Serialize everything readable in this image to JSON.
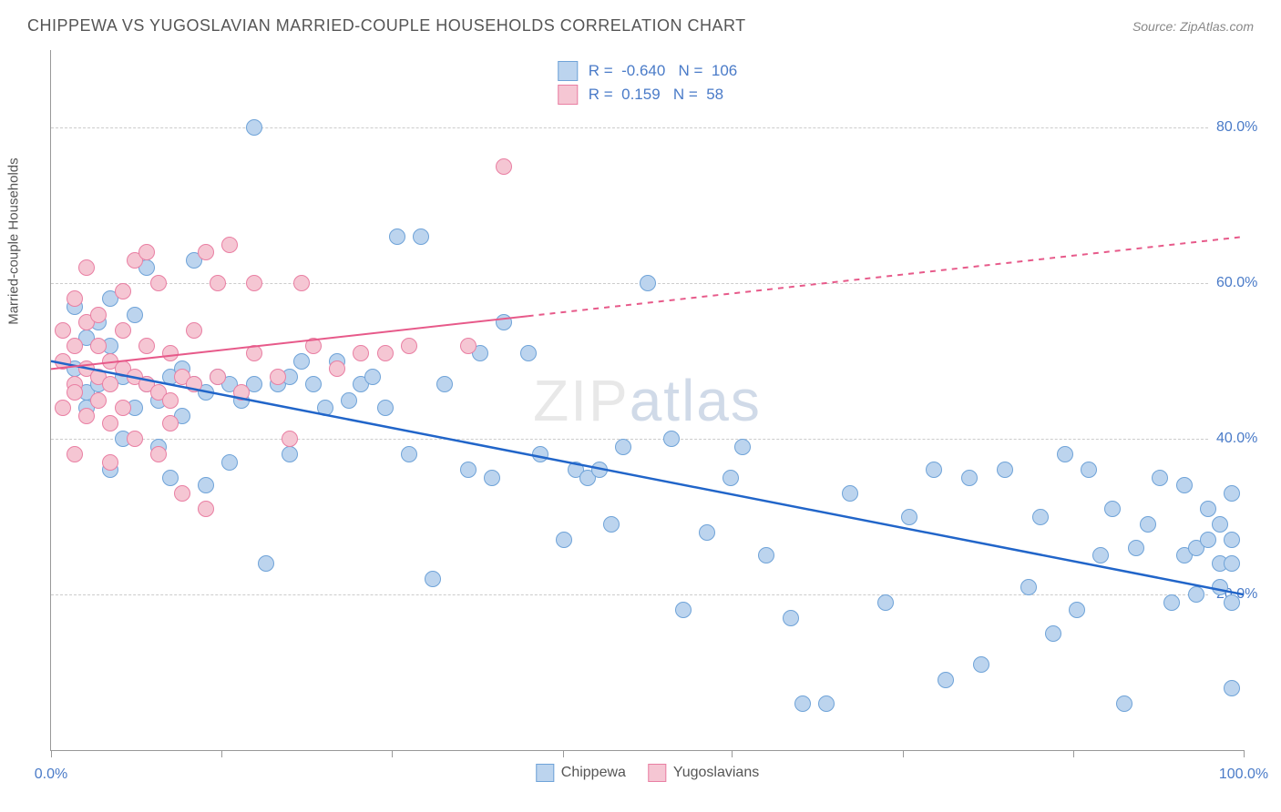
{
  "title": "CHIPPEWA VS YUGOSLAVIAN MARRIED-COUPLE HOUSEHOLDS CORRELATION CHART",
  "source": "Source: ZipAtlas.com",
  "y_axis_label": "Married-couple Households",
  "watermark_a": "ZIP",
  "watermark_b": "atlas",
  "chart": {
    "type": "scatter",
    "xlim": [
      0,
      100
    ],
    "ylim": [
      0,
      90
    ],
    "ytick_values": [
      20,
      40,
      60,
      80
    ],
    "ytick_labels": [
      "20.0%",
      "40.0%",
      "60.0%",
      "80.0%"
    ],
    "xtick_values": [
      0,
      14.3,
      28.6,
      42.9,
      57.1,
      71.4,
      85.7,
      100
    ],
    "xtick_labels_left": "0.0%",
    "xtick_labels_right": "100.0%",
    "background_color": "#ffffff",
    "grid_color": "#cccccc",
    "axis_color": "#999999"
  },
  "series": [
    {
      "name": "Chippewa",
      "R": "-0.640",
      "N": "106",
      "marker_fill": "#bcd4ee",
      "marker_stroke": "#6fa3d8",
      "marker_size": 18,
      "line_color": "#2165c9",
      "line_width": 2.5,
      "line_dash": "none",
      "trend_x1": 0,
      "trend_y1": 50,
      "trend_x2": 100,
      "trend_y2": 20,
      "points": [
        [
          2,
          49
        ],
        [
          2,
          57
        ],
        [
          3,
          44
        ],
        [
          3,
          53
        ],
        [
          3,
          46
        ],
        [
          4,
          47
        ],
        [
          4,
          55
        ],
        [
          5,
          36
        ],
        [
          5,
          52
        ],
        [
          5,
          58
        ],
        [
          6,
          40
        ],
        [
          6,
          48
        ],
        [
          7,
          44
        ],
        [
          7,
          56
        ],
        [
          8,
          47
        ],
        [
          8,
          62
        ],
        [
          9,
          45
        ],
        [
          9,
          39
        ],
        [
          10,
          48
        ],
        [
          10,
          35
        ],
        [
          11,
          49
        ],
        [
          11,
          43
        ],
        [
          12,
          47
        ],
        [
          12,
          63
        ],
        [
          13,
          34
        ],
        [
          13,
          46
        ],
        [
          14,
          48
        ],
        [
          15,
          47
        ],
        [
          15,
          37
        ],
        [
          16,
          45
        ],
        [
          17,
          47
        ],
        [
          17,
          80
        ],
        [
          18,
          24
        ],
        [
          19,
          47
        ],
        [
          20,
          48
        ],
        [
          20,
          38
        ],
        [
          21,
          50
        ],
        [
          22,
          47
        ],
        [
          23,
          44
        ],
        [
          24,
          50
        ],
        [
          25,
          45
        ],
        [
          26,
          47
        ],
        [
          27,
          48
        ],
        [
          28,
          44
        ],
        [
          29,
          66
        ],
        [
          30,
          38
        ],
        [
          31,
          66
        ],
        [
          32,
          22
        ],
        [
          33,
          47
        ],
        [
          35,
          36
        ],
        [
          36,
          51
        ],
        [
          37,
          35
        ],
        [
          38,
          55
        ],
        [
          40,
          51
        ],
        [
          41,
          38
        ],
        [
          43,
          27
        ],
        [
          44,
          36
        ],
        [
          45,
          35
        ],
        [
          46,
          36
        ],
        [
          47,
          29
        ],
        [
          48,
          39
        ],
        [
          50,
          60
        ],
        [
          52,
          40
        ],
        [
          53,
          18
        ],
        [
          55,
          28
        ],
        [
          57,
          35
        ],
        [
          58,
          39
        ],
        [
          60,
          25
        ],
        [
          62,
          17
        ],
        [
          63,
          6
        ],
        [
          65,
          6
        ],
        [
          67,
          33
        ],
        [
          70,
          19
        ],
        [
          72,
          30
        ],
        [
          74,
          36
        ],
        [
          75,
          9
        ],
        [
          77,
          35
        ],
        [
          78,
          11
        ],
        [
          80,
          36
        ],
        [
          82,
          21
        ],
        [
          83,
          30
        ],
        [
          84,
          15
        ],
        [
          85,
          38
        ],
        [
          86,
          18
        ],
        [
          87,
          36
        ],
        [
          88,
          25
        ],
        [
          89,
          31
        ],
        [
          90,
          6
        ],
        [
          91,
          26
        ],
        [
          92,
          29
        ],
        [
          93,
          35
        ],
        [
          94,
          19
        ],
        [
          95,
          34
        ],
        [
          95,
          25
        ],
        [
          96,
          20
        ],
        [
          96,
          26
        ],
        [
          97,
          31
        ],
        [
          97,
          27
        ],
        [
          98,
          24
        ],
        [
          98,
          29
        ],
        [
          98,
          21
        ],
        [
          99,
          24
        ],
        [
          99,
          33
        ],
        [
          99,
          27
        ],
        [
          99,
          19
        ],
        [
          99,
          8
        ]
      ]
    },
    {
      "name": "Yugoslavians",
      "R": "0.159",
      "N": "58",
      "marker_fill": "#f5c6d3",
      "marker_stroke": "#e97fa3",
      "marker_size": 18,
      "line_color": "#e75a8a",
      "line_width": 2,
      "line_dash": "solid_then_dashed",
      "trend_x1": 0,
      "trend_y1": 49,
      "trend_x2": 100,
      "trend_y2": 66,
      "solid_end_x": 40,
      "points": [
        [
          1,
          50
        ],
        [
          1,
          44
        ],
        [
          1,
          54
        ],
        [
          2,
          47
        ],
        [
          2,
          52
        ],
        [
          2,
          46
        ],
        [
          2,
          58
        ],
        [
          2,
          38
        ],
        [
          3,
          49
        ],
        [
          3,
          55
        ],
        [
          3,
          43
        ],
        [
          3,
          62
        ],
        [
          4,
          48
        ],
        [
          4,
          52
        ],
        [
          4,
          45
        ],
        [
          4,
          56
        ],
        [
          5,
          47
        ],
        [
          5,
          50
        ],
        [
          5,
          37
        ],
        [
          5,
          42
        ],
        [
          6,
          49
        ],
        [
          6,
          54
        ],
        [
          6,
          44
        ],
        [
          6,
          59
        ],
        [
          7,
          48
        ],
        [
          7,
          40
        ],
        [
          7,
          63
        ],
        [
          8,
          47
        ],
        [
          8,
          52
        ],
        [
          8,
          64
        ],
        [
          9,
          46
        ],
        [
          9,
          38
        ],
        [
          9,
          60
        ],
        [
          10,
          45
        ],
        [
          10,
          51
        ],
        [
          10,
          42
        ],
        [
          11,
          48
        ],
        [
          11,
          33
        ],
        [
          12,
          47
        ],
        [
          12,
          54
        ],
        [
          13,
          64
        ],
        [
          13,
          31
        ],
        [
          14,
          48
        ],
        [
          14,
          60
        ],
        [
          15,
          65
        ],
        [
          16,
          46
        ],
        [
          17,
          51
        ],
        [
          17,
          60
        ],
        [
          19,
          48
        ],
        [
          20,
          40
        ],
        [
          21,
          60
        ],
        [
          22,
          52
        ],
        [
          24,
          49
        ],
        [
          26,
          51
        ],
        [
          28,
          51
        ],
        [
          30,
          52
        ],
        [
          35,
          52
        ],
        [
          38,
          75
        ]
      ]
    }
  ],
  "bottom_legend": [
    {
      "label": "Chippewa",
      "fill": "#bcd4ee",
      "stroke": "#6fa3d8"
    },
    {
      "label": "Yugoslavians",
      "fill": "#f5c6d3",
      "stroke": "#e97fa3"
    }
  ]
}
